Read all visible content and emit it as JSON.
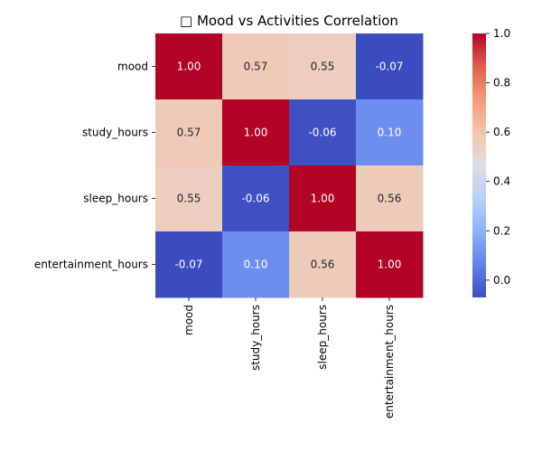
{
  "chart_data": {
    "type": "heatmap",
    "title": "□ Mood vs Activities Correlation",
    "xlabel": "",
    "ylabel": "",
    "rows": [
      "mood",
      "study_hours",
      "sleep_hours",
      "entertainment_hours"
    ],
    "columns": [
      "mood",
      "study_hours",
      "sleep_hours",
      "entertainment_hours"
    ],
    "values": [
      [
        1.0,
        0.57,
        0.55,
        -0.07
      ],
      [
        0.57,
        1.0,
        -0.06,
        0.1
      ],
      [
        0.55,
        -0.06,
        1.0,
        0.56
      ],
      [
        -0.07,
        0.1,
        0.56,
        1.0
      ]
    ],
    "annotation_format": "2f",
    "colormap": "coolwarm",
    "colorbar": {
      "range": [
        -0.07,
        1.0
      ],
      "ticks": [
        0.0,
        0.2,
        0.4,
        0.6,
        0.8,
        1.0
      ],
      "tick_labels": [
        "0.0",
        "0.2",
        "0.4",
        "0.6",
        "0.8",
        "1.0"
      ]
    },
    "grid": false,
    "legend": "colorbar-right"
  }
}
